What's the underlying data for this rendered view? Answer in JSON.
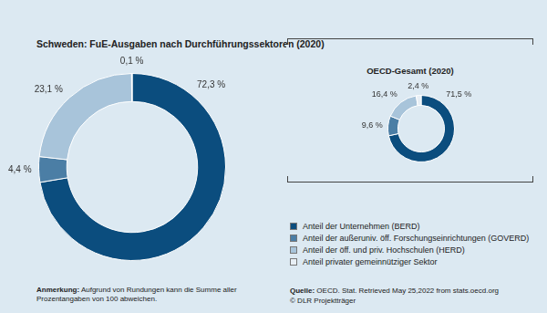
{
  "chart_data": [
    {
      "type": "doughnut",
      "title": "Schweden: FuE-Ausgaben nach Durchführungssektoren (2020)",
      "categories": [
        "Anteil der Unternehmen (BERD)",
        "Anteil der außeruniv. öff. Forschungseinrichtungen (GOVERD)",
        "Anteil der öff. und priv. Hochschulen (HERD)",
        "Anteil privater gemeinnütziger Sektor"
      ],
      "values": [
        72.3,
        4.4,
        23.1,
        0.1
      ],
      "value_labels": [
        "72,3 %",
        "4,4 %",
        "23,1 %",
        "0,1 %"
      ],
      "colors": [
        "#0b4d7e",
        "#4b7ea5",
        "#a8c4da",
        "#e8eff5"
      ],
      "data_labels": true
    },
    {
      "type": "doughnut",
      "title": "OECD-Gesamt (2020)",
      "categories": [
        "Anteil der Unternehmen (BERD)",
        "Anteil der außeruniv. öff. Forschungseinrichtungen (GOVERD)",
        "Anteil der öff. und priv. Hochschulen (HERD)",
        "Anteil privater gemeinnütziger Sektor"
      ],
      "values": [
        71.5,
        9.6,
        16.4,
        2.4
      ],
      "value_labels": [
        "71,5 %",
        "9,6 %",
        "16,4 %",
        "2,4 %"
      ],
      "colors": [
        "#0b4d7e",
        "#4b7ea5",
        "#a8c4da",
        "#e8eff5"
      ],
      "data_labels": true,
      "legend": "bottom"
    }
  ],
  "note": {
    "label": "Anmerkung:",
    "text": "Aufgrund von Rundungen kann die Summe aller Prozentangaben von 100 abweichen."
  },
  "source": {
    "label": "Quelle:",
    "text": "OECD. Stat. Retrieved May 25,2022 from stats.oecd.org",
    "credit": "© DLR Projektträger"
  }
}
